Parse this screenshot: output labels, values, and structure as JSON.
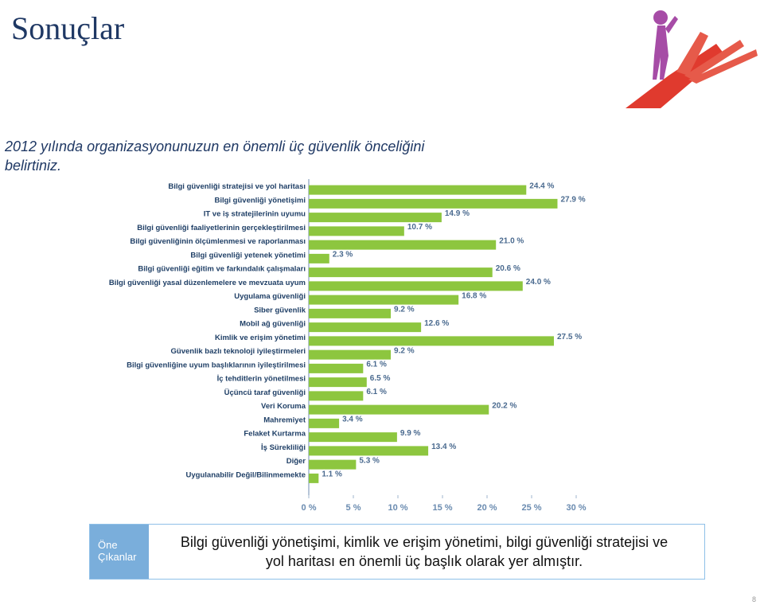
{
  "title": "Sonuçlar",
  "question": "2012 yılında organizasyonunuzun en önemli üç güvenlik önceliğini belirtiniz.",
  "chart_data": {
    "type": "barh",
    "color": "#8dc63f",
    "categories": [
      "Bilgi güvenliği stratejisi ve yol haritası",
      "Bilgi güvenliği yönetişimi",
      "IT ve iş stratejilerinin uyumu",
      "Bilgi güvenliği faaliyetlerinin gerçekleştirilmesi",
      "Bilgi güvenliğinin ölçümlenmesi ve raporlanması",
      "Bilgi güvenliği yetenek yönetimi",
      "Bilgi güvenliği eğitim ve farkındalık çalışmaları",
      "Bilgi güvenliği yasal düzenlemelere ve mevzuata uyum",
      "Uygulama güvenliği",
      "Siber güvenlik",
      "Mobil ağ güvenliği",
      "Kimlik ve erişim yönetimi",
      "Güvenlik bazlı teknoloji iyileştirmeleri",
      "Bilgi güvenliğine uyum başlıklarının iyileştirilmesi",
      "İç tehditlerin yönetilmesi",
      "Üçüncü taraf güvenliği",
      "Veri Koruma",
      "Mahremiyet",
      "Felaket Kurtarma",
      "İş Sürekliliği",
      "Diğer",
      "Uygulanabilir Değil/Bilinmemekte"
    ],
    "values": [
      24.4,
      27.9,
      14.9,
      10.7,
      21.0,
      2.3,
      20.6,
      24.0,
      16.8,
      9.2,
      12.6,
      27.5,
      9.2,
      6.1,
      6.5,
      6.1,
      20.2,
      3.4,
      9.9,
      13.4,
      5.3,
      1.1
    ],
    "value_labels": [
      "24.4 %",
      "27.9 %",
      "14.9 %",
      "10.7 %",
      "21.0 %",
      "2.3 %",
      "20.6 %",
      "24.0 %",
      "16.8 %",
      "9.2 %",
      "12.6 %",
      "27.5 %",
      "9.2 %",
      "6.1 %",
      "6.5 %",
      "6.1 %",
      "20.2 %",
      "3.4 %",
      "9.9 %",
      "13.4 %",
      "5.3 %",
      "1.1 %"
    ],
    "xlim": [
      0,
      30
    ],
    "xticks": [
      {
        "value": 0,
        "label": "0 %"
      },
      {
        "value": 5,
        "label": "5 %"
      },
      {
        "value": 10,
        "label": "10 %"
      },
      {
        "value": 15,
        "label": "15 %"
      },
      {
        "value": 20,
        "label": "20 %"
      },
      {
        "value": 25,
        "label": "25 %"
      },
      {
        "value": 30,
        "label": "30 %"
      }
    ]
  },
  "highlight": {
    "label": "Öne Çıkanlar",
    "text": "Bilgi güvenliği yönetişimi, kimlik ve erişim yönetimi, bilgi güvenliği stratejisi ve yol haritası en önemli üç başlık olarak yer almıştır."
  },
  "page_number": 8
}
